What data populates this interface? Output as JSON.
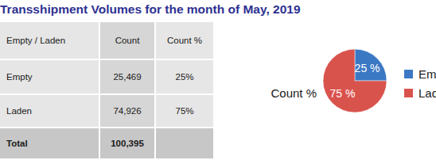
{
  "title": "Transshipment Volumes for the month of May, 2019",
  "table": {
    "header": [
      "Empty / Laden",
      "Count",
      "Count %"
    ],
    "rows": [
      [
        "Empty",
        "25,469",
        "25%"
      ],
      [
        "Laden",
        "74,926",
        "75%"
      ],
      [
        "Total",
        "100,395",
        null
      ]
    ]
  },
  "chart_data": {
    "type": "pie",
    "title": "Count %",
    "categories": [
      "Empty",
      "Laden"
    ],
    "values": [
      25,
      75
    ],
    "value_labels": [
      "25 %",
      "75 %"
    ],
    "colors": [
      "#3b78c4",
      "#d9534d"
    ],
    "data_labels": true,
    "legend": "right"
  }
}
